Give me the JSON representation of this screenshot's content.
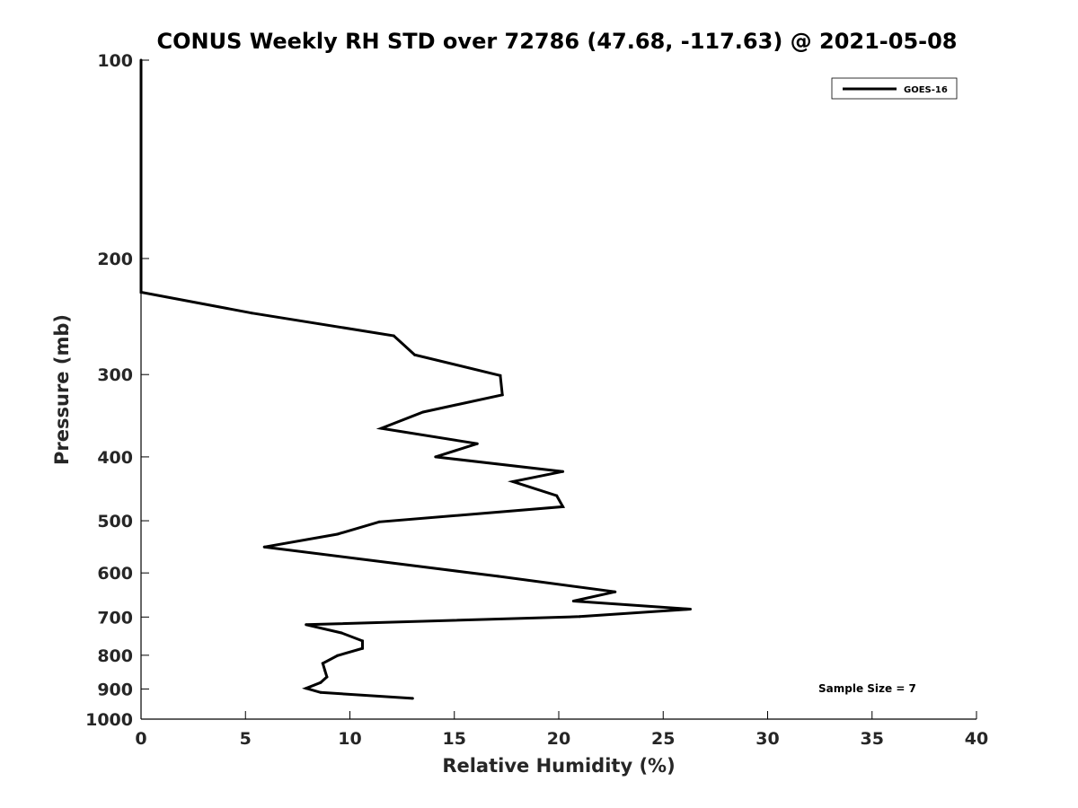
{
  "chart_data": {
    "type": "line",
    "title": "CONUS Weekly RH STD over 72786 (47.68, -117.63) @ 2021-05-08",
    "xlabel": "Relative Humidity (%)",
    "ylabel": "Pressure (mb)",
    "xlim": [
      0,
      40
    ],
    "ylim": [
      1000,
      100
    ],
    "yscale": "log",
    "y_reversed": true,
    "grid": false,
    "xticks": [
      0,
      5,
      10,
      15,
      20,
      25,
      30,
      35,
      40
    ],
    "yticks": [
      100,
      200,
      300,
      400,
      500,
      600,
      700,
      800,
      900,
      1000
    ],
    "legend_position": "top-right",
    "annotation": "Sample Size = 7",
    "series": [
      {
        "name": "GOES-16",
        "color": "#000000",
        "x": [
          0,
          0,
          0,
          5.3,
          12.1,
          13.1,
          17.2,
          17.3,
          13.5,
          11.5,
          16.1,
          14.1,
          20.2,
          17.8,
          19.9,
          20.2,
          11.4,
          9.4,
          5.9,
          10.4,
          17.1,
          22.7,
          20.7,
          26.3,
          21.0,
          7.9,
          9.6,
          10.6,
          10.6,
          9.4,
          8.7,
          8.8,
          8.9,
          8.6,
          7.9,
          8.6,
          13.0
        ],
        "y": [
          100,
          200,
          225,
          242,
          262,
          280,
          301,
          322,
          342,
          362,
          382,
          400,
          421,
          436,
          458,
          476,
          502,
          524,
          548,
          571,
          607,
          641,
          662,
          681,
          699,
          719,
          740,
          761,
          781,
          801,
          823,
          843,
          863,
          880,
          898,
          911,
          930
        ]
      }
    ]
  }
}
